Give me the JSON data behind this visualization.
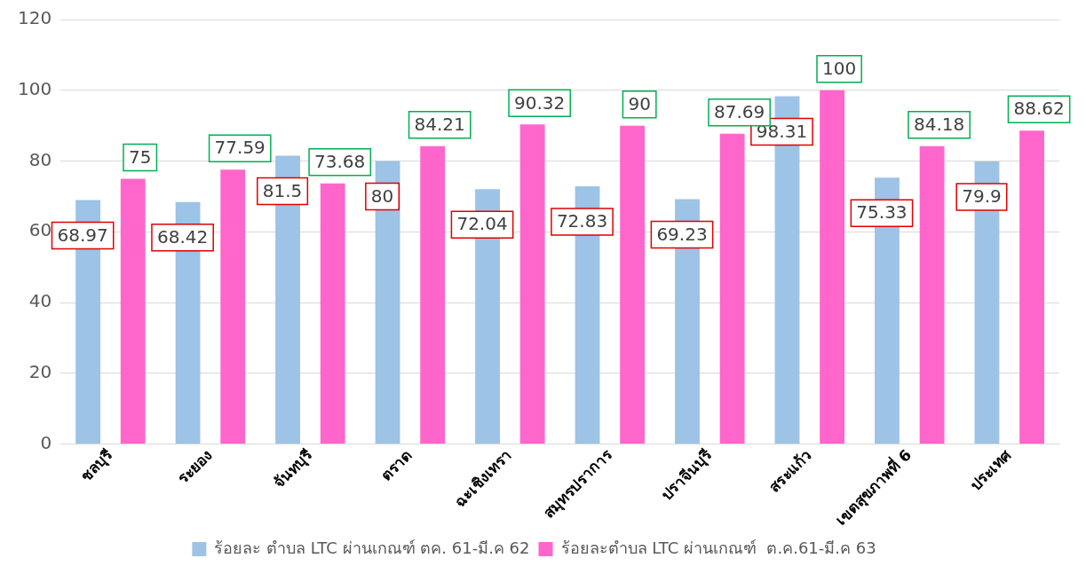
{
  "chart_data": {
    "type": "bar",
    "categories": [
      "ชลบุรี",
      "ระยอง",
      "จันทบุรี",
      "ตราด",
      "ฉะเชิงเทรา",
      "สมุทรปราการ",
      "ปราจีนบุรี",
      "สระแก้ว",
      "เขตสุขภาพที่ 6",
      "ประเทศ"
    ],
    "series": [
      {
        "name": "ร้อยละ ตำบล LTC ผ่านเกณฑ์ ตค. 61-มี.ค 62",
        "color": "#9dc3e6",
        "values": [
          68.97,
          68.42,
          81.5,
          80,
          72.04,
          72.83,
          69.23,
          98.31,
          75.33,
          79.9
        ]
      },
      {
        "name": "ร้อยละตำบล LTC ผ่านเกณฑ์  ต.ค.61-มี.ค 63",
        "color": "#ff66cc",
        "values": [
          75,
          77.59,
          73.68,
          84.21,
          90.32,
          90,
          87.69,
          100,
          84.18,
          88.62
        ]
      }
    ],
    "ylim": [
      0,
      120
    ],
    "yticks": [
      0,
      20,
      40,
      60,
      80,
      100,
      120
    ],
    "grid": "y",
    "legend": "bottom",
    "data_labels": true
  }
}
